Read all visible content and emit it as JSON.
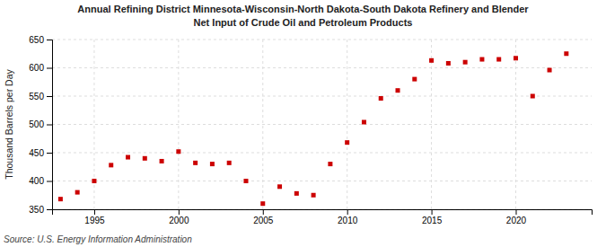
{
  "chart_data": {
    "type": "scatter",
    "title": "Annual Refining District Minnesota-Wisconsin-North Dakota-South Dakota Refinery and Blender",
    "subtitle": "Net Input of Crude Oil and Petroleum Products",
    "ylabel": "Thousand Barrels per Day",
    "source": "Source: U.S. Energy Information Administration",
    "x": [
      1993,
      1994,
      1995,
      1996,
      1997,
      1998,
      1999,
      2000,
      2001,
      2002,
      2003,
      2004,
      2005,
      2006,
      2007,
      2008,
      2009,
      2010,
      2011,
      2012,
      2013,
      2014,
      2015,
      2016,
      2017,
      2018,
      2019,
      2020,
      2021,
      2022,
      2023
    ],
    "values": [
      368,
      380,
      400,
      428,
      442,
      440,
      435,
      452,
      432,
      430,
      432,
      400,
      360,
      390,
      378,
      375,
      430,
      468,
      504,
      546,
      560,
      580,
      613,
      608,
      610,
      615,
      615,
      617,
      550,
      596,
      625
    ],
    "color": "#cc0000",
    "marker": "square",
    "xlim": [
      1992.5,
      2024.5
    ],
    "ylim": [
      350,
      650
    ],
    "xticks": [
      1995,
      2000,
      2005,
      2010,
      2015,
      2020
    ],
    "yticks": [
      350,
      400,
      450,
      500,
      550,
      600,
      650
    ],
    "grid": true
  }
}
